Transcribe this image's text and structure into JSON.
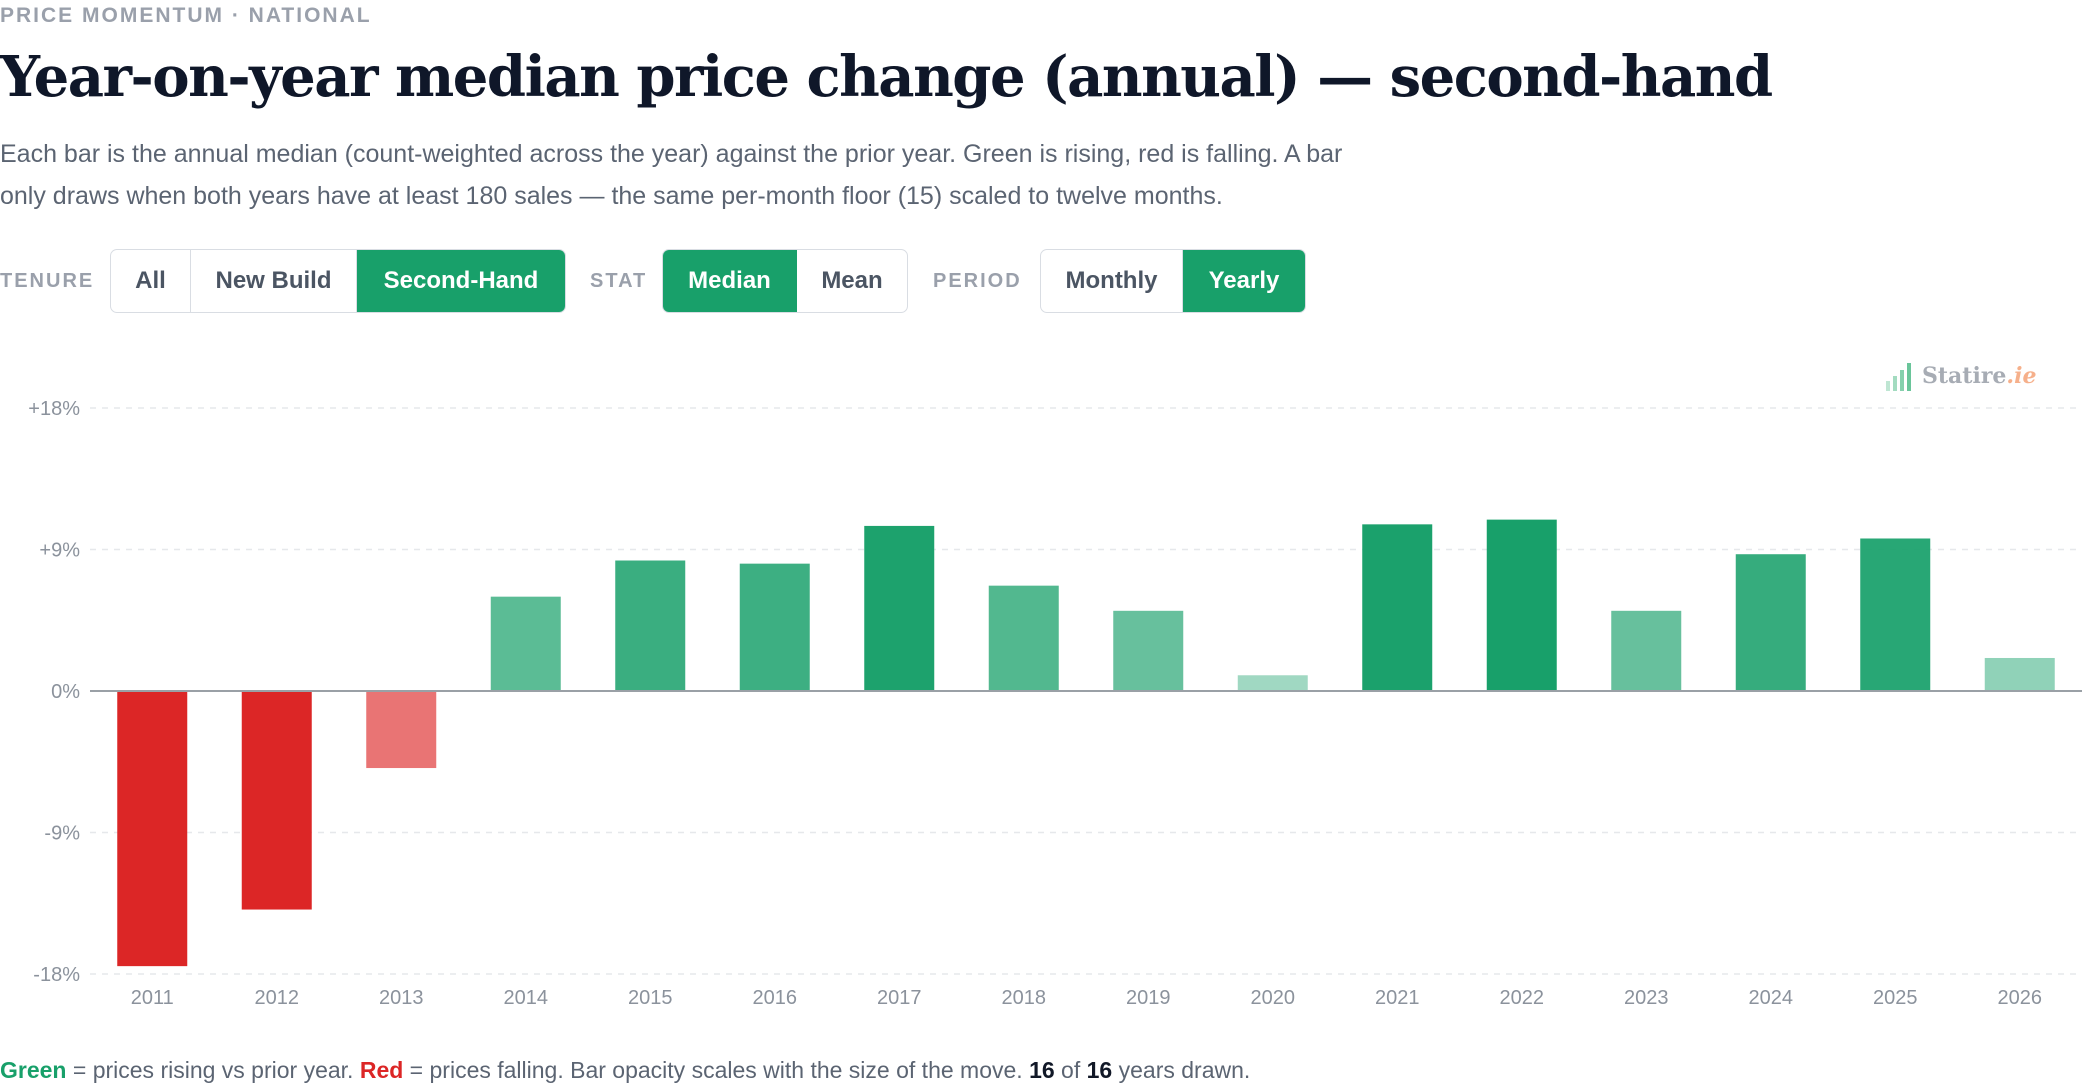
{
  "header": {
    "eyebrow": "PRICE MOMENTUM · NATIONAL",
    "title": "Year-on-year median price change (annual) — second-hand",
    "subtitle": "Each bar is the annual median (count-weighted across the year) against the prior year. Green is rising, red is falling. A bar only draws when both years have at least 180 sales — the same per-month floor (15) scaled to twelve months."
  },
  "controls": {
    "tenure": {
      "label": "TENURE",
      "options": [
        "All",
        "New Build",
        "Second-Hand"
      ],
      "selected": "Second-Hand"
    },
    "stat": {
      "label": "STAT",
      "options": [
        "Median",
        "Mean"
      ],
      "selected": "Median"
    },
    "period": {
      "label": "PERIOD",
      "options": [
        "Monthly",
        "Yearly"
      ],
      "selected": "Yearly"
    }
  },
  "brand": {
    "name": "Statire",
    "tld": ".ie",
    "icon": "bar-chart-icon"
  },
  "colors": {
    "positive": "#18a06a",
    "negative": "#dc2626",
    "accent": "#18a06a",
    "axis": "#9aa0a6"
  },
  "chart_data": {
    "type": "bar",
    "categories": [
      "2011",
      "2012",
      "2013",
      "2014",
      "2015",
      "2016",
      "2017",
      "2018",
      "2019",
      "2020",
      "2021",
      "2022",
      "2023",
      "2024",
      "2025",
      "2026"
    ],
    "values": [
      -17.5,
      -13.9,
      -4.9,
      6.0,
      8.3,
      8.1,
      10.5,
      6.7,
      5.1,
      1.0,
      10.6,
      10.9,
      5.1,
      8.7,
      9.7,
      2.1
    ],
    "ylim": [
      -18,
      18
    ],
    "yticks": [
      "+18%",
      "+9%",
      "0%",
      "-9%",
      "-18%"
    ],
    "ytick_values": [
      18,
      9,
      0,
      -9,
      -18
    ],
    "xlabel": "",
    "ylabel": "",
    "grid": true
  },
  "footnote": {
    "green_word": "Green",
    "text_1": " = prices rising vs prior year. ",
    "red_word": "Red",
    "text_2": " = prices falling. Bar opacity scales with the size of the move. ",
    "drawn": "16",
    "text_3": " of ",
    "total": "16",
    "text_4": " years drawn."
  }
}
